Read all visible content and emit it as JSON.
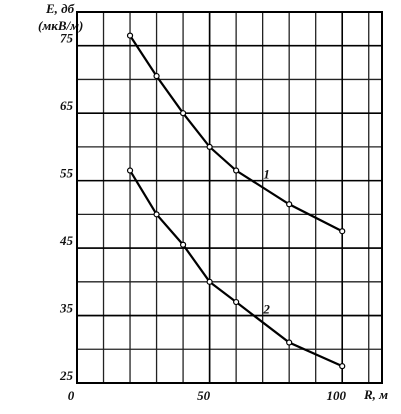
{
  "chart_data": {
    "type": "line",
    "y_label": [
      "E, дб",
      "(мкВ/м)"
    ],
    "x_label": "R, м",
    "x": [
      20,
      30,
      40,
      50,
      60,
      80,
      100
    ],
    "series": [
      {
        "name": "1",
        "color": "#000000",
        "values": [
          76.5,
          70.5,
          65,
          60,
          56.5,
          51.5,
          47.5
        ]
      },
      {
        "name": "2",
        "color": "#000000",
        "values": [
          56.5,
          50,
          45.5,
          40,
          37,
          31,
          27.5
        ]
      }
    ],
    "xlim": [
      0,
      115
    ],
    "ylim": [
      25,
      80
    ],
    "xticks": [
      0,
      50,
      100
    ],
    "yticks": [
      25,
      35,
      45,
      55,
      65,
      75
    ],
    "grid": true
  }
}
